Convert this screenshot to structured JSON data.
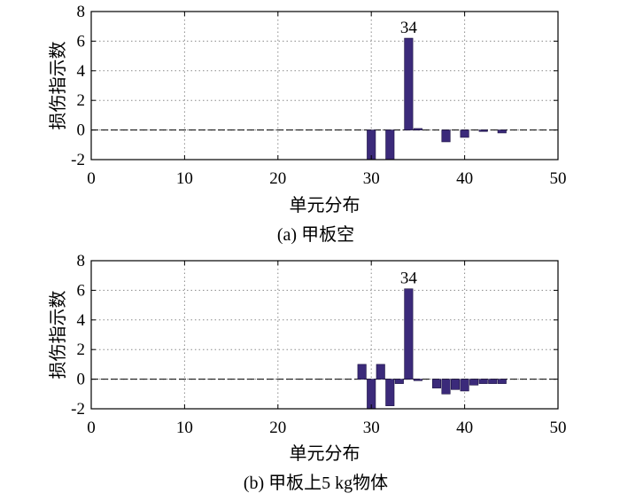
{
  "chart_data": [
    {
      "type": "bar",
      "caption": "(a) 甲板空",
      "xlabel": "单元分布",
      "ylabel": "损伤指示数",
      "xlim": [
        0,
        50
      ],
      "ylim": [
        -2,
        8
      ],
      "xticks": [
        0,
        10,
        20,
        30,
        40,
        50
      ],
      "yticks": [
        -2,
        0,
        2,
        4,
        6,
        8
      ],
      "grid": true,
      "bar_color": "#3b2a7a",
      "annotations": [
        {
          "text": "34",
          "x": 34,
          "y": 6.2
        }
      ],
      "x": [
        1,
        2,
        3,
        4,
        5,
        6,
        7,
        8,
        9,
        10,
        11,
        12,
        13,
        14,
        15,
        16,
        17,
        18,
        19,
        20,
        21,
        22,
        23,
        24,
        25,
        26,
        27,
        28,
        29,
        30,
        31,
        32,
        33,
        34,
        35,
        36,
        37,
        38,
        39,
        40,
        41,
        42,
        43,
        44,
        45
      ],
      "values": [
        0,
        0,
        -0.02,
        -0.02,
        0,
        0.05,
        0.05,
        0.02,
        0,
        -0.02,
        -0.02,
        -0.02,
        -0.02,
        -0.02,
        -0.02,
        -0.02,
        -0.02,
        -0.02,
        -0.02,
        -0.02,
        -0.02,
        -0.02,
        -0.02,
        -0.02,
        -0.02,
        -0.02,
        -0.02,
        -0.02,
        -0.02,
        -2,
        0,
        -2,
        0.05,
        6.2,
        0.1,
        0,
        -0.02,
        -0.8,
        -0.02,
        -0.5,
        0,
        -0.1,
        0,
        -0.2,
        0
      ]
    },
    {
      "type": "bar",
      "caption": "(b) 甲板上5 kg物体",
      "xlabel": "单元分布",
      "ylabel": "损伤指示数",
      "xlim": [
        0,
        50
      ],
      "ylim": [
        -2,
        8
      ],
      "xticks": [
        0,
        10,
        20,
        30,
        40,
        50
      ],
      "yticks": [
        -2,
        0,
        2,
        4,
        6,
        8
      ],
      "grid": true,
      "bar_color": "#3b2a7a",
      "annotations": [
        {
          "text": "34",
          "x": 34,
          "y": 6.1
        }
      ],
      "x": [
        1,
        2,
        3,
        4,
        5,
        6,
        7,
        8,
        9,
        10,
        11,
        12,
        13,
        14,
        15,
        16,
        17,
        18,
        19,
        20,
        21,
        22,
        23,
        24,
        25,
        26,
        27,
        28,
        29,
        30,
        31,
        32,
        33,
        34,
        35,
        36,
        37,
        38,
        39,
        40,
        41,
        42,
        43,
        44,
        45
      ],
      "values": [
        0,
        0,
        -0.05,
        0,
        0,
        0.02,
        0.02,
        0,
        -0.05,
        -0.05,
        -0.05,
        -0.05,
        0,
        0,
        0,
        0,
        0,
        0,
        0,
        0,
        0,
        0,
        0,
        0,
        0,
        0,
        0,
        0,
        1.0,
        -2,
        1.0,
        -1.8,
        -0.3,
        6.1,
        -0.1,
        0,
        -0.6,
        -1.0,
        -0.7,
        -0.8,
        -0.4,
        -0.3,
        -0.3,
        -0.3,
        0
      ]
    }
  ]
}
